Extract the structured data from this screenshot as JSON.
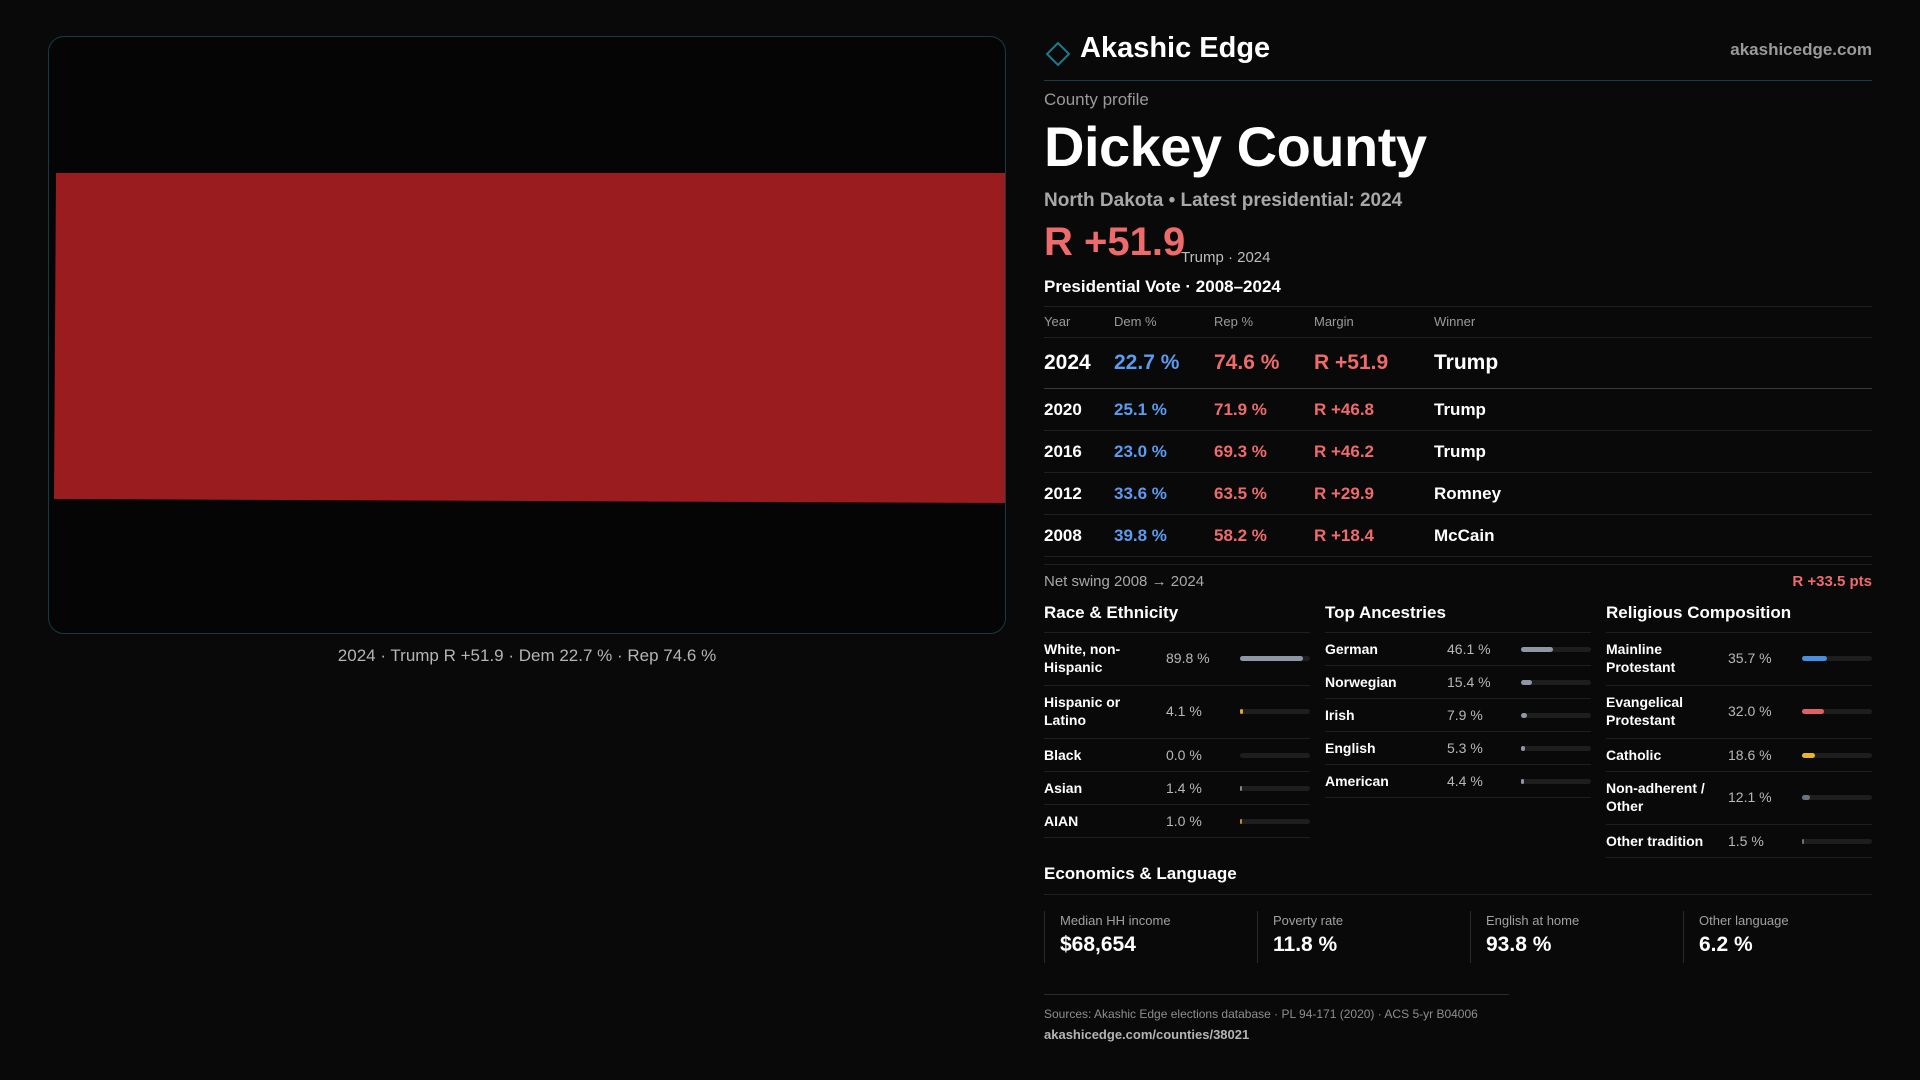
{
  "brand": {
    "name": "Akashic Edge",
    "url": "akashicedge.com"
  },
  "map": {
    "fill_color": "#9b1c1f",
    "caption": "2024 · Trump R +51.9 · Dem 22.7 % · Rep 74.6 %"
  },
  "profile": {
    "eyebrow": "County profile",
    "title": "Dickey County",
    "subtitle": "North Dakota • Latest presidential: 2024",
    "headline_margin": "R +51.9",
    "headline_note": "Trump · 2024"
  },
  "vote": {
    "heading": "Presidential Vote · 2008–2024",
    "columns": [
      "Year",
      "Dem %",
      "Rep %",
      "Margin",
      "Winner"
    ],
    "rows": [
      {
        "year": "2024",
        "dem": "22.7 %",
        "rep": "74.6 %",
        "margin": "R +51.9",
        "winner": "Trump"
      },
      {
        "year": "2020",
        "dem": "25.1 %",
        "rep": "71.9 %",
        "margin": "R +46.8",
        "winner": "Trump"
      },
      {
        "year": "2016",
        "dem": "23.0 %",
        "rep": "69.3 %",
        "margin": "R +46.2",
        "winner": "Trump"
      },
      {
        "year": "2012",
        "dem": "33.6 %",
        "rep": "63.5 %",
        "margin": "R +29.9",
        "winner": "Romney"
      },
      {
        "year": "2008",
        "dem": "39.8 %",
        "rep": "58.2 %",
        "margin": "R +18.4",
        "winner": "McCain"
      }
    ],
    "swing_label": "Net swing 2008 → 2024",
    "swing_value": "R +33.5 pts"
  },
  "race": {
    "title": "Race & Ethnicity",
    "items": [
      {
        "label": "White, non-Hispanic",
        "value": "89.8 %",
        "pct": 89.8,
        "color": "#8f97a6"
      },
      {
        "label": "Hispanic or Latino",
        "value": "4.1 %",
        "pct": 4.1,
        "color": "#e0a52a"
      },
      {
        "label": "Black",
        "value": "0.0 %",
        "pct": 0.0,
        "color": "#8f97a6"
      },
      {
        "label": "Asian",
        "value": "1.4 %",
        "pct": 1.4,
        "color": "#7f8796"
      },
      {
        "label": "AIAN",
        "value": "1.0 %",
        "pct": 1.0,
        "color": "#c9863a"
      }
    ]
  },
  "ancestry": {
    "title": "Top Ancestries",
    "items": [
      {
        "label": "German",
        "value": "46.1 %",
        "pct": 46.1,
        "color": "#8f97a6"
      },
      {
        "label": "Norwegian",
        "value": "15.4 %",
        "pct": 15.4,
        "color": "#8f97a6"
      },
      {
        "label": "Irish",
        "value": "7.9 %",
        "pct": 7.9,
        "color": "#8f97a6"
      },
      {
        "label": "English",
        "value": "5.3 %",
        "pct": 5.3,
        "color": "#8f97a6"
      },
      {
        "label": "American",
        "value": "4.4 %",
        "pct": 4.4,
        "color": "#8f97a6"
      }
    ]
  },
  "religion": {
    "title": "Religious Composition",
    "items": [
      {
        "label": "Mainline Protestant",
        "value": "35.7 %",
        "pct": 35.7,
        "color": "#4a8ee0"
      },
      {
        "label": "Evangelical Protestant",
        "value": "32.0 %",
        "pct": 32.0,
        "color": "#e0606a"
      },
      {
        "label": "Catholic",
        "value": "18.6 %",
        "pct": 18.6,
        "color": "#e6b52e"
      },
      {
        "label": "Non-adherent / Other",
        "value": "12.1 %",
        "pct": 12.1,
        "color": "#6c7380"
      },
      {
        "label": "Other tradition",
        "value": "1.5 %",
        "pct": 1.5,
        "color": "#6c7380"
      }
    ]
  },
  "economics": {
    "title": "Economics & Language",
    "cards": [
      {
        "label": "Median HH income",
        "value": "$68,654"
      },
      {
        "label": "Poverty rate",
        "value": "11.8 %"
      },
      {
        "label": "English at home",
        "value": "93.8 %"
      },
      {
        "label": "Other language",
        "value": "6.2 %"
      }
    ]
  },
  "sources": {
    "line": "Sources: Akashic Edge elections database · PL 94-171 (2020) · ACS 5-yr B04006",
    "url": "akashicedge.com/counties/38021"
  },
  "colors": {
    "accent": "#1c7a8a",
    "dem": "#5b9cf0",
    "rep": "#ee6b6b"
  }
}
